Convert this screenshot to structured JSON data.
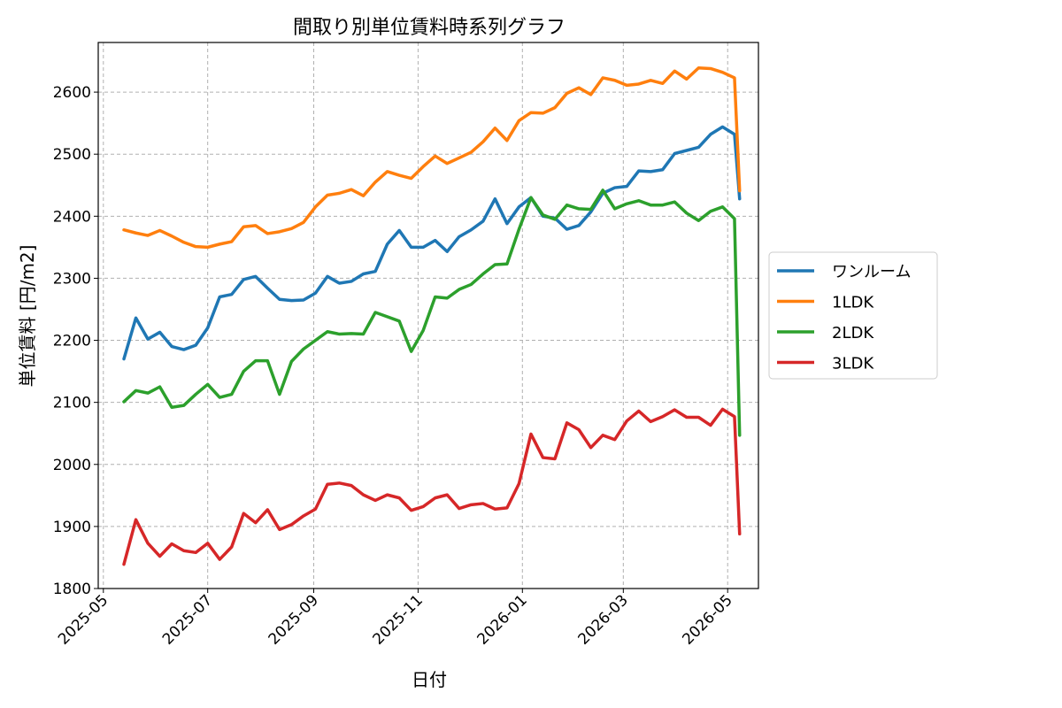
{
  "chart_data": {
    "type": "line",
    "title": "間取り別単位賃料時系列グラフ",
    "xlabel": "日付",
    "ylabel": "単位賃料 [円/m2]",
    "x_is_date": true,
    "xlim": [
      "2025-04-28",
      "2026-05-19"
    ],
    "ylim": [
      1800,
      2680
    ],
    "yticks": [
      1800,
      1900,
      2000,
      2100,
      2200,
      2300,
      2400,
      2500,
      2600
    ],
    "xticks": [
      "2025-05-01",
      "2025-07-01",
      "2025-09-01",
      "2025-11-01",
      "2026-01-01",
      "2026-03-01",
      "2026-05-01"
    ],
    "xtick_labels": [
      "2025-05",
      "2025-07",
      "2025-09",
      "2025-11",
      "2026-01",
      "2026-03",
      "2026-05"
    ],
    "grid": true,
    "legend_position": "outside-right",
    "x": [
      "2025-05-13",
      "2025-05-20",
      "2025-05-27",
      "2025-06-03",
      "2025-06-10",
      "2025-06-17",
      "2025-06-24",
      "2025-07-01",
      "2025-07-08",
      "2025-07-15",
      "2025-07-22",
      "2025-07-29",
      "2025-08-05",
      "2025-08-12",
      "2025-08-19",
      "2025-08-26",
      "2025-09-02",
      "2025-09-09",
      "2025-09-16",
      "2025-09-23",
      "2025-09-30",
      "2025-10-07",
      "2025-10-14",
      "2025-10-21",
      "2025-10-28",
      "2025-11-04",
      "2025-11-11",
      "2025-11-18",
      "2025-11-25",
      "2025-12-02",
      "2025-12-09",
      "2025-12-16",
      "2025-12-23",
      "2025-12-30",
      "2026-01-06",
      "2026-01-13",
      "2026-01-20",
      "2026-01-27",
      "2026-02-03",
      "2026-02-10",
      "2026-02-17",
      "2026-02-24",
      "2026-03-03",
      "2026-03-10",
      "2026-03-17",
      "2026-03-24",
      "2026-03-31",
      "2026-04-07",
      "2026-04-14",
      "2026-04-21",
      "2026-04-28",
      "2026-05-05",
      "2026-05-08"
    ],
    "series": [
      {
        "name": "ワンルーム",
        "color": "#1f77b4",
        "values": [
          2170,
          2236,
          2202,
          2213,
          2190,
          2185,
          2192,
          2220,
          2270,
          2274,
          2298,
          2303,
          2284,
          2266,
          2264,
          2265,
          2276,
          2303,
          2292,
          2295,
          2307,
          2311,
          2355,
          2377,
          2350,
          2350,
          2361,
          2343,
          2367,
          2378,
          2392,
          2428,
          2388,
          2415,
          2430,
          2400,
          2397,
          2379,
          2385,
          2407,
          2437,
          2446,
          2448,
          2473,
          2472,
          2475,
          2501,
          2506,
          2511,
          2532,
          2544,
          2532,
          2428
        ]
      },
      {
        "name": "1LDK",
        "color": "#ff7f0e",
        "values": [
          2378,
          2373,
          2369,
          2377,
          2368,
          2358,
          2351,
          2350,
          2355,
          2359,
          2383,
          2385,
          2372,
          2375,
          2380,
          2390,
          2415,
          2434,
          2437,
          2443,
          2433,
          2455,
          2472,
          2466,
          2461,
          2480,
          2497,
          2485,
          2494,
          2503,
          2520,
          2542,
          2522,
          2554,
          2567,
          2566,
          2575,
          2598,
          2607,
          2596,
          2623,
          2619,
          2611,
          2613,
          2619,
          2614,
          2634,
          2621,
          2639,
          2638,
          2632,
          2623,
          2441
        ]
      },
      {
        "name": "2LDK",
        "color": "#2ca02c",
        "values": [
          2101,
          2119,
          2115,
          2125,
          2092,
          2095,
          2113,
          2129,
          2108,
          2113,
          2150,
          2167,
          2167,
          2113,
          2166,
          2186,
          2200,
          2214,
          2210,
          2211,
          2210,
          2245,
          2238,
          2231,
          2182,
          2216,
          2270,
          2268,
          2282,
          2290,
          2307,
          2322,
          2323,
          2379,
          2430,
          2402,
          2395,
          2418,
          2412,
          2411,
          2442,
          2412,
          2420,
          2425,
          2418,
          2418,
          2423,
          2405,
          2393,
          2408,
          2415,
          2396,
          2047
        ]
      },
      {
        "name": "3LDK",
        "color": "#d62728",
        "values": [
          1839,
          1911,
          1873,
          1852,
          1872,
          1861,
          1858,
          1873,
          1847,
          1867,
          1921,
          1906,
          1927,
          1895,
          1903,
          1917,
          1928,
          1968,
          1970,
          1966,
          1951,
          1942,
          1951,
          1946,
          1926,
          1932,
          1946,
          1951,
          1929,
          1935,
          1937,
          1928,
          1930,
          1969,
          2049,
          2011,
          2009,
          2067,
          2056,
          2027,
          2047,
          2040,
          2070,
          2086,
          2069,
          2077,
          2088,
          2076,
          2076,
          2063,
          2089,
          2077,
          1888
        ]
      }
    ]
  }
}
